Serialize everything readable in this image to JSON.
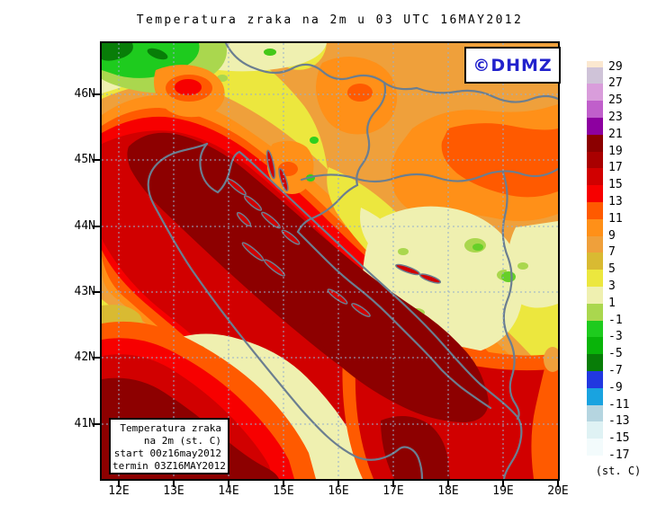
{
  "title": "Temperatura zraka na 2m u 03 UTC 16MAY2012",
  "watermark": {
    "text": "©DHMZ",
    "color": "#2222cc"
  },
  "legend_box": {
    "lines": [
      "Temperatura zraka",
      "na 2m (st. C)",
      "start 00z16may2012",
      "termin 03Z16MAY2012"
    ]
  },
  "axes": {
    "lat": [
      "46N",
      "45N",
      "44N",
      "43N",
      "42N",
      "41N"
    ],
    "lon": [
      "12E",
      "13E",
      "14E",
      "15E",
      "16E",
      "17E",
      "18E",
      "19E",
      "20E"
    ]
  },
  "colorbar": {
    "unit_label": "(st. C)",
    "tick_values": [
      "29",
      "27",
      "25",
      "23",
      "21",
      "19",
      "17",
      "15",
      "13",
      "11",
      "9",
      "7",
      "5",
      "3",
      "1",
      "-1",
      "-3",
      "-5",
      "-7",
      "-9",
      "-11",
      "-13",
      "-15",
      "-17"
    ],
    "cell_colors": [
      "#fbe8d0",
      "#cfc3d8",
      "#d99ddb",
      "#c05fcb",
      "#8d00a0",
      "#8b0000",
      "#a90000",
      "#d10000",
      "#f70000",
      "#ff5a00",
      "#ff9018",
      "#efa03b",
      "#d9ba32",
      "#ece73e",
      "#eff0b0",
      "#aad74e",
      "#1ecb1e",
      "#09b409",
      "#087d08",
      "#2138e0",
      "#19a3e0",
      "#b5d5e0",
      "#dff2f4",
      "#f3fbfc",
      "#ffffff"
    ]
  },
  "map": {
    "coast_color": "#6b7e90",
    "graticule_color": "#96afcd"
  }
}
